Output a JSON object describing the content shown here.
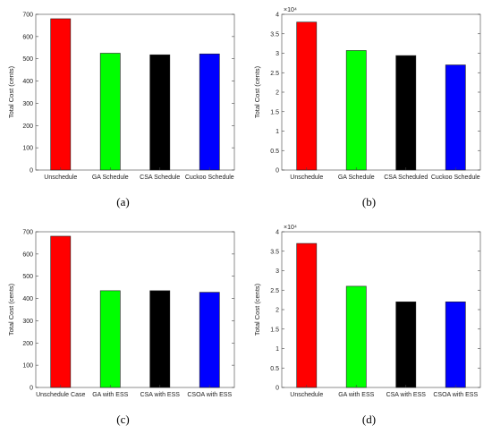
{
  "chart_data": [
    {
      "type": "bar",
      "panel_label": "(a)",
      "categories": [
        "Unschedule",
        "GA Schedule",
        "CSA Schedule",
        "Cuckoo Schedule"
      ],
      "values": [
        680,
        525,
        518,
        522
      ],
      "colors": [
        "#ff0000",
        "#00ff00",
        "#000000",
        "#0000ff"
      ],
      "ylabel": "Total Cost (cents)",
      "ylim": [
        0,
        700
      ],
      "yticks": [
        0,
        100,
        200,
        300,
        400,
        500,
        600,
        700
      ],
      "exponent_label": "",
      "grid": false
    },
    {
      "type": "bar",
      "panel_label": "(b)",
      "categories": [
        "Unschedule",
        "GA Schedule",
        "CSA Scheduled",
        "Cuckoo Schedule"
      ],
      "values": [
        38000,
        30700,
        29400,
        27000
      ],
      "colors": [
        "#ff0000",
        "#00ff00",
        "#000000",
        "#0000ff"
      ],
      "ylabel": "Total Cost (cents)",
      "ylim": [
        0,
        40000
      ],
      "yticks": [
        0,
        5000,
        10000,
        15000,
        20000,
        25000,
        30000,
        35000,
        40000
      ],
      "ytick_labels": [
        "0",
        "0.5",
        "1",
        "1.5",
        "2",
        "2.5",
        "3",
        "3.5",
        "4"
      ],
      "exponent_label": "×10⁴",
      "grid": false
    },
    {
      "type": "bar",
      "panel_label": "(c)",
      "categories": [
        "Unschedule Case",
        "GA with ESS",
        "CSA with ESS",
        "CSOA with ESS"
      ],
      "values": [
        680,
        435,
        435,
        428
      ],
      "colors": [
        "#ff0000",
        "#00ff00",
        "#000000",
        "#0000ff"
      ],
      "ylabel": "Total Cost (cents)",
      "ylim": [
        0,
        700
      ],
      "yticks": [
        0,
        100,
        200,
        300,
        400,
        500,
        600,
        700
      ],
      "exponent_label": "",
      "grid": false
    },
    {
      "type": "bar",
      "panel_label": "(d)",
      "categories": [
        "Unschedule",
        "GA with ESS",
        "CSA with ESS",
        "CSOA with ESS"
      ],
      "values": [
        37000,
        26000,
        22000,
        22000
      ],
      "colors": [
        "#ff0000",
        "#00ff00",
        "#000000",
        "#0000ff"
      ],
      "ylabel": "Total Cost (cents)",
      "ylim": [
        0,
        40000
      ],
      "yticks": [
        0,
        5000,
        10000,
        15000,
        20000,
        25000,
        30000,
        35000,
        40000
      ],
      "ytick_labels": [
        "0",
        "0.5",
        "1",
        "1.5",
        "2",
        "2.5",
        "3",
        "3.5",
        "4"
      ],
      "exponent_label": "×10⁴",
      "grid": false
    }
  ]
}
